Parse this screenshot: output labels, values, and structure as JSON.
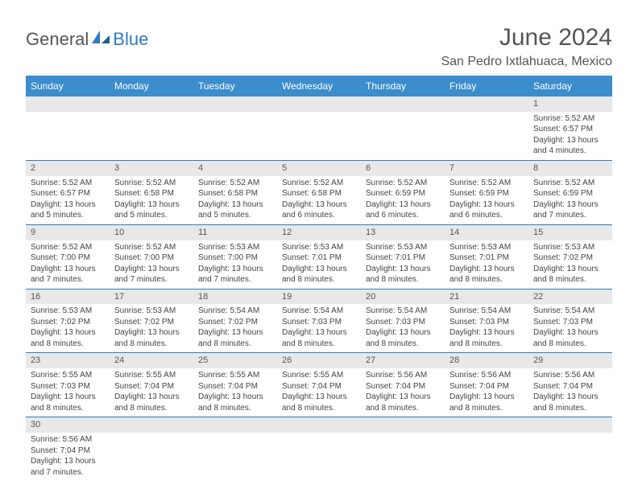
{
  "logo": {
    "general": "General",
    "blue": "Blue"
  },
  "title": "June 2024",
  "location": "San Pedro Ixtlahuaca, Mexico",
  "header_bg": "#3c8dcc",
  "header_fg": "#ffffff",
  "row_border": "#2f7bbf",
  "daynum_bg": "#e8e8e8",
  "weekdays": [
    "Sunday",
    "Monday",
    "Tuesday",
    "Wednesday",
    "Thursday",
    "Friday",
    "Saturday"
  ],
  "weeks": [
    [
      null,
      null,
      null,
      null,
      null,
      null,
      {
        "day": "1",
        "sunrise": "Sunrise: 5:52 AM",
        "sunset": "Sunset: 6:57 PM",
        "dl1": "Daylight: 13 hours",
        "dl2": "and 4 minutes."
      }
    ],
    [
      {
        "day": "2",
        "sunrise": "Sunrise: 5:52 AM",
        "sunset": "Sunset: 6:57 PM",
        "dl1": "Daylight: 13 hours",
        "dl2": "and 5 minutes."
      },
      {
        "day": "3",
        "sunrise": "Sunrise: 5:52 AM",
        "sunset": "Sunset: 6:58 PM",
        "dl1": "Daylight: 13 hours",
        "dl2": "and 5 minutes."
      },
      {
        "day": "4",
        "sunrise": "Sunrise: 5:52 AM",
        "sunset": "Sunset: 6:58 PM",
        "dl1": "Daylight: 13 hours",
        "dl2": "and 5 minutes."
      },
      {
        "day": "5",
        "sunrise": "Sunrise: 5:52 AM",
        "sunset": "Sunset: 6:58 PM",
        "dl1": "Daylight: 13 hours",
        "dl2": "and 6 minutes."
      },
      {
        "day": "6",
        "sunrise": "Sunrise: 5:52 AM",
        "sunset": "Sunset: 6:59 PM",
        "dl1": "Daylight: 13 hours",
        "dl2": "and 6 minutes."
      },
      {
        "day": "7",
        "sunrise": "Sunrise: 5:52 AM",
        "sunset": "Sunset: 6:59 PM",
        "dl1": "Daylight: 13 hours",
        "dl2": "and 6 minutes."
      },
      {
        "day": "8",
        "sunrise": "Sunrise: 5:52 AM",
        "sunset": "Sunset: 6:59 PM",
        "dl1": "Daylight: 13 hours",
        "dl2": "and 7 minutes."
      }
    ],
    [
      {
        "day": "9",
        "sunrise": "Sunrise: 5:52 AM",
        "sunset": "Sunset: 7:00 PM",
        "dl1": "Daylight: 13 hours",
        "dl2": "and 7 minutes."
      },
      {
        "day": "10",
        "sunrise": "Sunrise: 5:52 AM",
        "sunset": "Sunset: 7:00 PM",
        "dl1": "Daylight: 13 hours",
        "dl2": "and 7 minutes."
      },
      {
        "day": "11",
        "sunrise": "Sunrise: 5:53 AM",
        "sunset": "Sunset: 7:00 PM",
        "dl1": "Daylight: 13 hours",
        "dl2": "and 7 minutes."
      },
      {
        "day": "12",
        "sunrise": "Sunrise: 5:53 AM",
        "sunset": "Sunset: 7:01 PM",
        "dl1": "Daylight: 13 hours",
        "dl2": "and 8 minutes."
      },
      {
        "day": "13",
        "sunrise": "Sunrise: 5:53 AM",
        "sunset": "Sunset: 7:01 PM",
        "dl1": "Daylight: 13 hours",
        "dl2": "and 8 minutes."
      },
      {
        "day": "14",
        "sunrise": "Sunrise: 5:53 AM",
        "sunset": "Sunset: 7:01 PM",
        "dl1": "Daylight: 13 hours",
        "dl2": "and 8 minutes."
      },
      {
        "day": "15",
        "sunrise": "Sunrise: 5:53 AM",
        "sunset": "Sunset: 7:02 PM",
        "dl1": "Daylight: 13 hours",
        "dl2": "and 8 minutes."
      }
    ],
    [
      {
        "day": "16",
        "sunrise": "Sunrise: 5:53 AM",
        "sunset": "Sunset: 7:02 PM",
        "dl1": "Daylight: 13 hours",
        "dl2": "and 8 minutes."
      },
      {
        "day": "17",
        "sunrise": "Sunrise: 5:53 AM",
        "sunset": "Sunset: 7:02 PM",
        "dl1": "Daylight: 13 hours",
        "dl2": "and 8 minutes."
      },
      {
        "day": "18",
        "sunrise": "Sunrise: 5:54 AM",
        "sunset": "Sunset: 7:02 PM",
        "dl1": "Daylight: 13 hours",
        "dl2": "and 8 minutes."
      },
      {
        "day": "19",
        "sunrise": "Sunrise: 5:54 AM",
        "sunset": "Sunset: 7:03 PM",
        "dl1": "Daylight: 13 hours",
        "dl2": "and 8 minutes."
      },
      {
        "day": "20",
        "sunrise": "Sunrise: 5:54 AM",
        "sunset": "Sunset: 7:03 PM",
        "dl1": "Daylight: 13 hours",
        "dl2": "and 8 minutes."
      },
      {
        "day": "21",
        "sunrise": "Sunrise: 5:54 AM",
        "sunset": "Sunset: 7:03 PM",
        "dl1": "Daylight: 13 hours",
        "dl2": "and 8 minutes."
      },
      {
        "day": "22",
        "sunrise": "Sunrise: 5:54 AM",
        "sunset": "Sunset: 7:03 PM",
        "dl1": "Daylight: 13 hours",
        "dl2": "and 8 minutes."
      }
    ],
    [
      {
        "day": "23",
        "sunrise": "Sunrise: 5:55 AM",
        "sunset": "Sunset: 7:03 PM",
        "dl1": "Daylight: 13 hours",
        "dl2": "and 8 minutes."
      },
      {
        "day": "24",
        "sunrise": "Sunrise: 5:55 AM",
        "sunset": "Sunset: 7:04 PM",
        "dl1": "Daylight: 13 hours",
        "dl2": "and 8 minutes."
      },
      {
        "day": "25",
        "sunrise": "Sunrise: 5:55 AM",
        "sunset": "Sunset: 7:04 PM",
        "dl1": "Daylight: 13 hours",
        "dl2": "and 8 minutes."
      },
      {
        "day": "26",
        "sunrise": "Sunrise: 5:55 AM",
        "sunset": "Sunset: 7:04 PM",
        "dl1": "Daylight: 13 hours",
        "dl2": "and 8 minutes."
      },
      {
        "day": "27",
        "sunrise": "Sunrise: 5:56 AM",
        "sunset": "Sunset: 7:04 PM",
        "dl1": "Daylight: 13 hours",
        "dl2": "and 8 minutes."
      },
      {
        "day": "28",
        "sunrise": "Sunrise: 5:56 AM",
        "sunset": "Sunset: 7:04 PM",
        "dl1": "Daylight: 13 hours",
        "dl2": "and 8 minutes."
      },
      {
        "day": "29",
        "sunrise": "Sunrise: 5:56 AM",
        "sunset": "Sunset: 7:04 PM",
        "dl1": "Daylight: 13 hours",
        "dl2": "and 8 minutes."
      }
    ],
    [
      {
        "day": "30",
        "sunrise": "Sunrise: 5:56 AM",
        "sunset": "Sunset: 7:04 PM",
        "dl1": "Daylight: 13 hours",
        "dl2": "and 7 minutes."
      },
      null,
      null,
      null,
      null,
      null,
      null
    ]
  ]
}
